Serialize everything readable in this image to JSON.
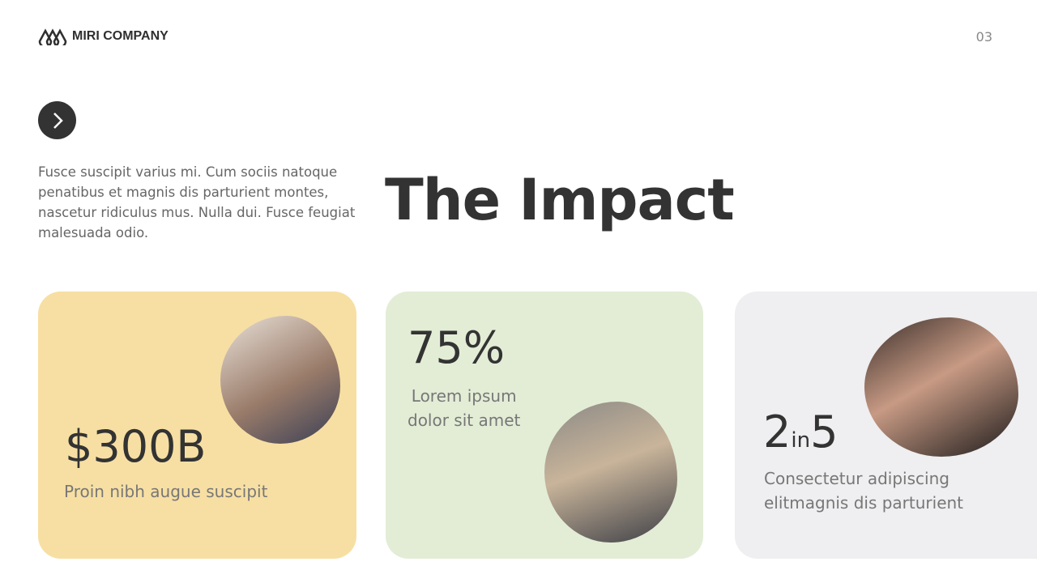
{
  "header": {
    "company": "MIRI COMPANY",
    "page_number": "03"
  },
  "intro": "Fusce suscipit varius mi. Cum sociis natoque penatibus et magnis dis parturient montes, nascetur ridiculus mus. Nulla dui. Fusce feugiat malesuada odio.",
  "title": "The Impact",
  "cards": [
    {
      "stat": "$300B",
      "text": "Proin nibh augue suscipit",
      "color": "#f7dfa3"
    },
    {
      "stat": "75%",
      "text_line1": "Lorem ipsum",
      "text_line2": "dolor sit amet",
      "color": "#e3edd6"
    },
    {
      "stat_a": "2",
      "stat_in": "in",
      "stat_b": "5",
      "text_line1": "Consectetur adipiscing",
      "text_line2": "elitmagnis dis parturient",
      "color": "#efeef0"
    }
  ]
}
